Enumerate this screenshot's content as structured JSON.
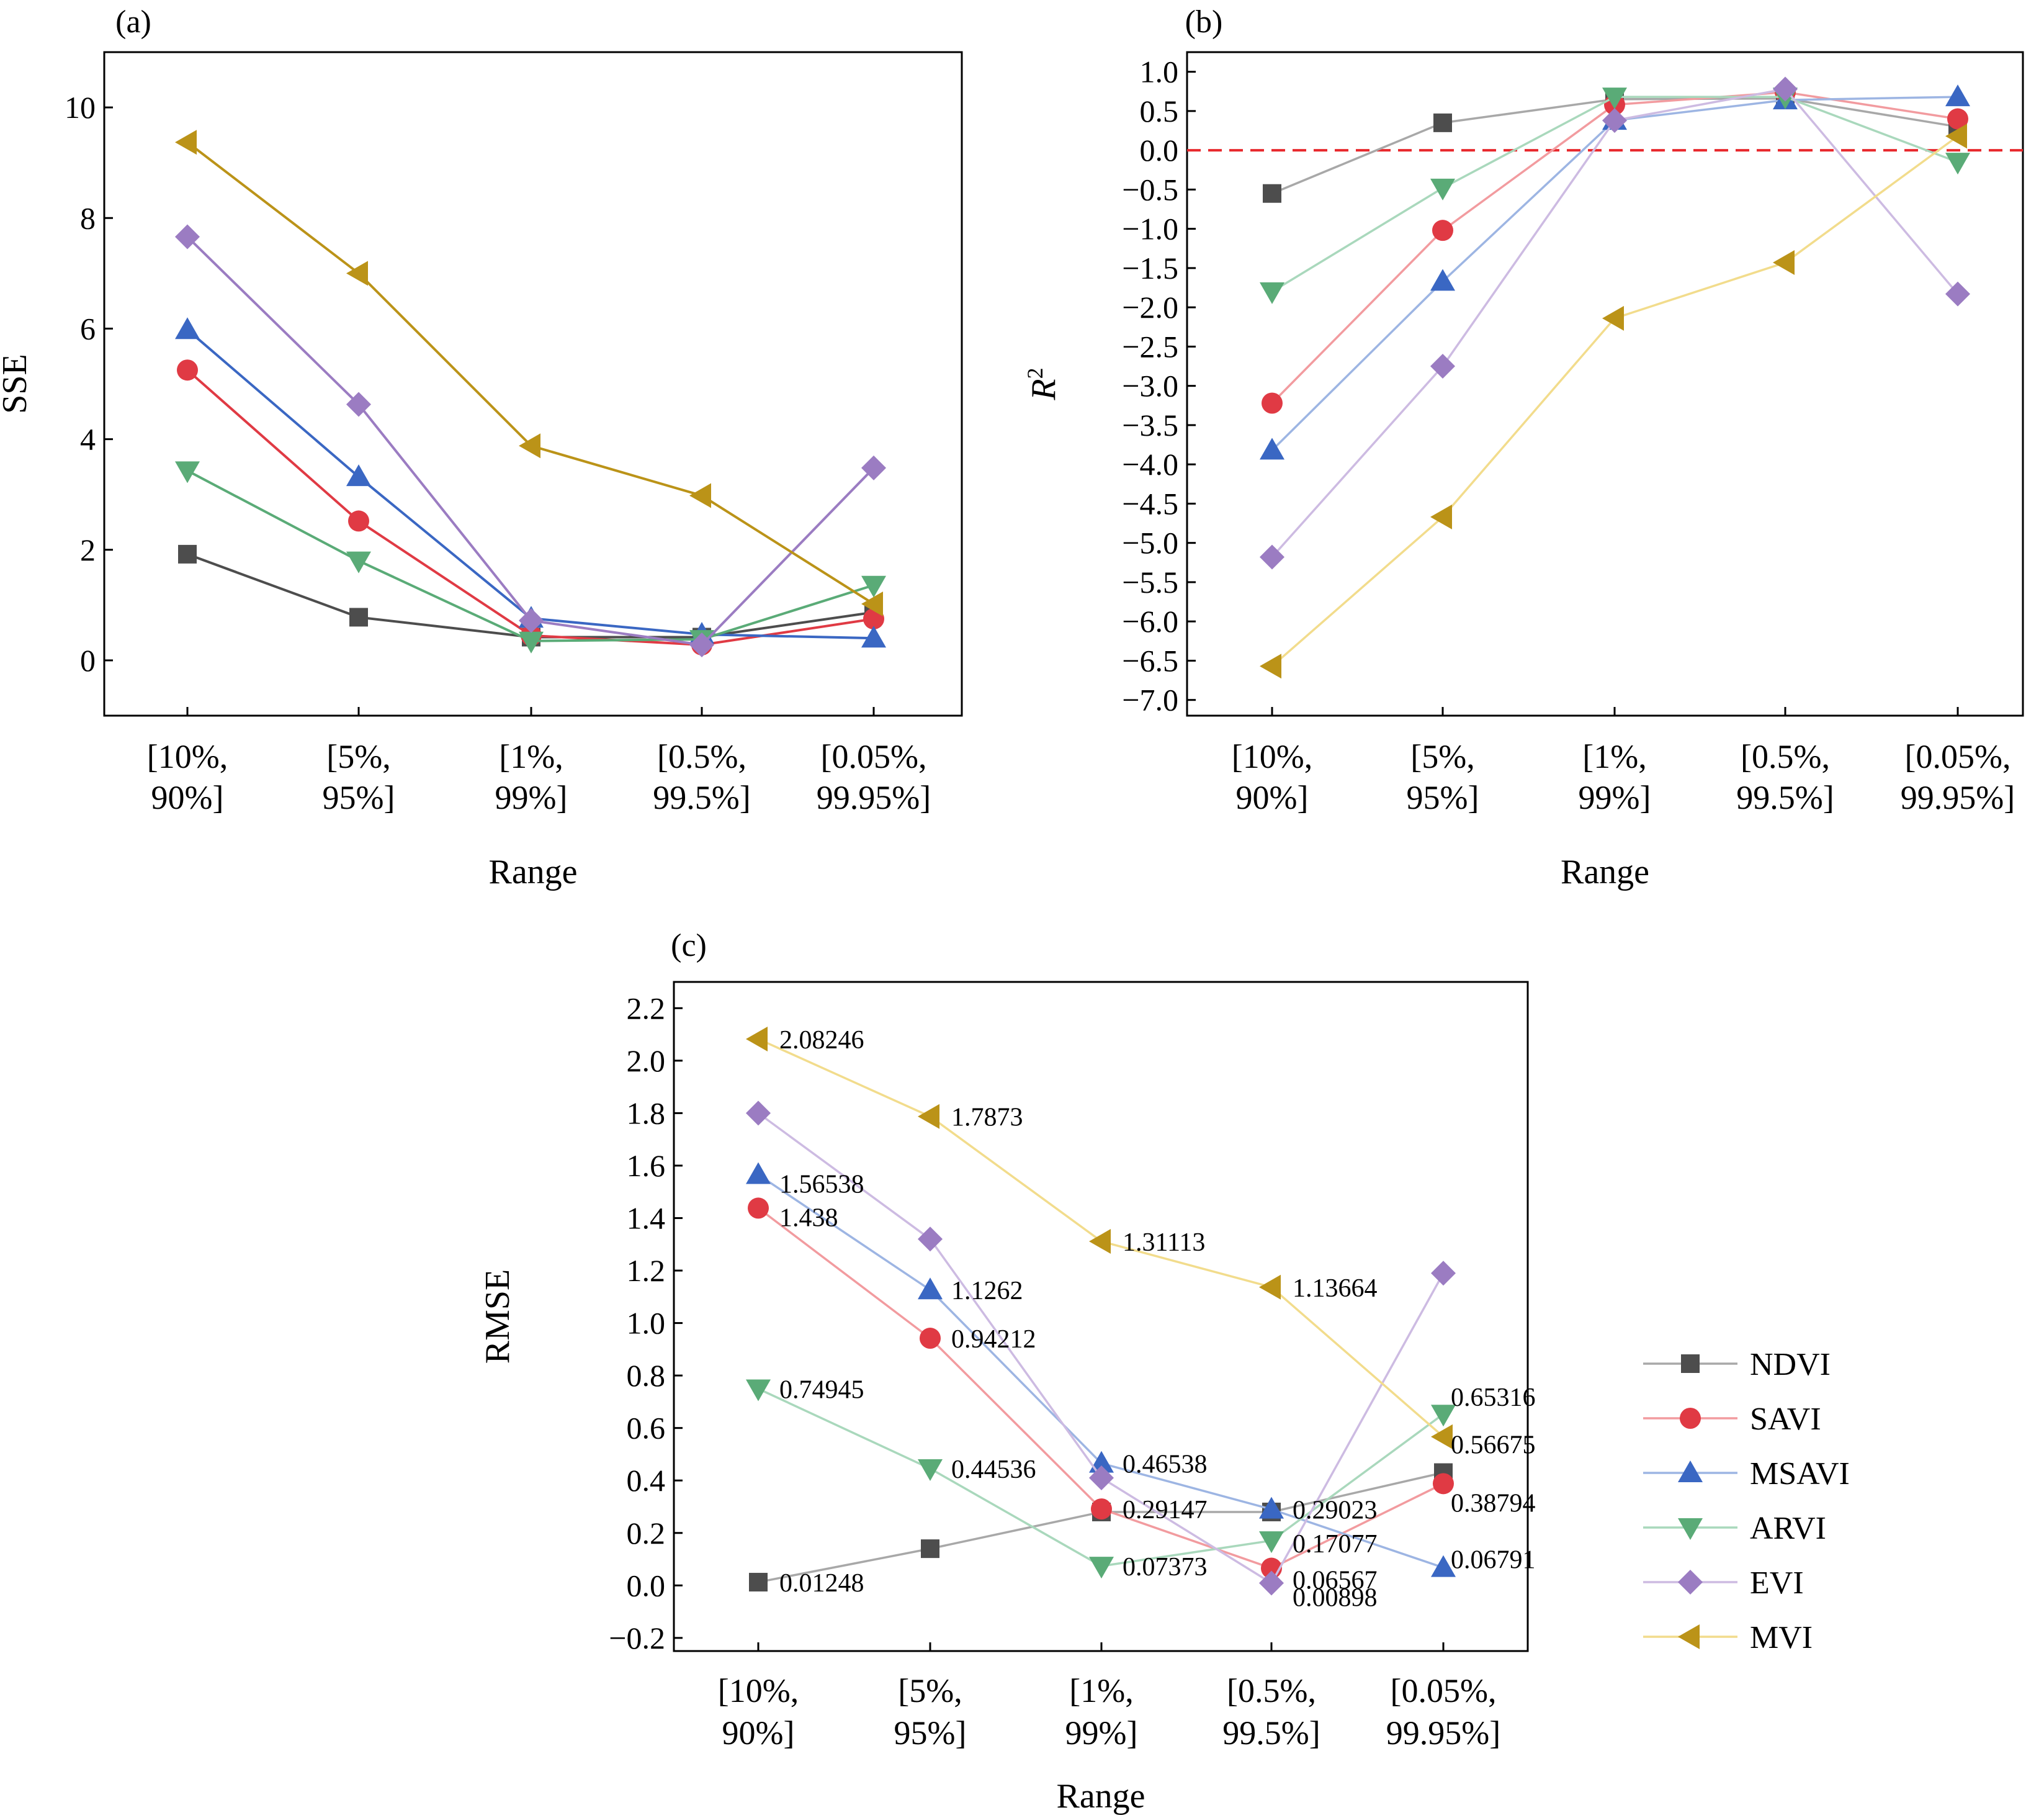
{
  "colors": {
    "NDVI": "#4d4d4d",
    "SAVI": "#e03a44",
    "MSAVI": "#3a67c3",
    "ARVI": "#5aab77",
    "EVI": "#9b7cc2",
    "MVI": "#bb9318"
  },
  "chart_data": [
    {
      "panel_label": "(a)",
      "type": "line",
      "xlabel": "Range",
      "ylabel": "SSE",
      "categories": [
        [
          "[10%,",
          "90%]"
        ],
        [
          "[5%,",
          "95%]"
        ],
        [
          "[1%,",
          "99%]"
        ],
        [
          "[0.5%,",
          "99.5%]"
        ],
        [
          "[0.05%,",
          "99.95%]"
        ]
      ],
      "ylim": [
        -1,
        11
      ],
      "yticks": [
        "0",
        "2",
        "4",
        "6",
        "8",
        "10"
      ],
      "ytick_values": [
        0,
        2,
        4,
        6,
        8,
        10
      ],
      "grid": false,
      "series": [
        {
          "name": "NDVI",
          "marker": "square",
          "color": "#4d4d4d",
          "line_color": "#4d4d4d",
          "values": [
            1.92,
            0.78,
            0.42,
            0.42,
            0.87
          ]
        },
        {
          "name": "SAVI",
          "marker": "circle",
          "color": "#e03a44",
          "line_color": "#e03a44",
          "values": [
            5.25,
            2.52,
            0.45,
            0.28,
            0.75
          ]
        },
        {
          "name": "MSAVI",
          "marker": "triangle-up",
          "color": "#3a67c3",
          "line_color": "#3a67c3",
          "values": [
            5.98,
            3.32,
            0.76,
            0.47,
            0.4
          ]
        },
        {
          "name": "ARVI",
          "marker": "triangle-down",
          "color": "#5aab77",
          "line_color": "#5aab77",
          "values": [
            3.43,
            1.8,
            0.35,
            0.38,
            1.36
          ]
        },
        {
          "name": "EVI",
          "marker": "diamond",
          "color": "#9b7cc2",
          "line_color": "#9b7cc2",
          "values": [
            7.66,
            4.63,
            0.72,
            0.28,
            3.48
          ]
        },
        {
          "name": "MVI",
          "marker": "triangle-left",
          "color": "#bb9318",
          "line_color": "#bb9318",
          "values": [
            9.37,
            7.0,
            3.88,
            2.98,
            1.02
          ]
        }
      ]
    },
    {
      "panel_label": "(b)",
      "type": "line",
      "xlabel": "Range",
      "ylabel": "R",
      "ylabel_sup": "2",
      "categories": [
        [
          "[10%,",
          "90%]"
        ],
        [
          "[5%,",
          "95%]"
        ],
        [
          "[1%,",
          "99%]"
        ],
        [
          "[0.5%,",
          "99.5%]"
        ],
        [
          "[0.05%,",
          "99.95%]"
        ]
      ],
      "ylim": [
        -7.2,
        1.25
      ],
      "yticks": [
        "1.0",
        "0.5",
        "0.0",
        "−0.5",
        "−1.0",
        "−1.5",
        "−2.0",
        "−2.5",
        "−3.0",
        "−3.5",
        "−4.0",
        "−4.5",
        "−5.0",
        "−5.5",
        "−6.0",
        "−6.5",
        "−7.0"
      ],
      "ytick_values": [
        1.0,
        0.5,
        0.0,
        -0.5,
        -1.0,
        -1.5,
        -2.0,
        -2.5,
        -3.0,
        -3.5,
        -4.0,
        -4.5,
        -5.0,
        -5.5,
        -6.0,
        -6.5,
        -7.0
      ],
      "reference_line": {
        "y": 0,
        "color": "#e8282d",
        "style": "dashed"
      },
      "grid": false,
      "series": [
        {
          "name": "NDVI",
          "marker": "square",
          "color": "#4d4d4d",
          "line_color": "#a8a8a8",
          "values": [
            -0.55,
            0.35,
            0.65,
            0.66,
            0.3
          ]
        },
        {
          "name": "SAVI",
          "marker": "circle",
          "color": "#e03a44",
          "line_color": "#f29b9f",
          "values": [
            -3.22,
            -1.02,
            0.58,
            0.74,
            0.4
          ]
        },
        {
          "name": "MSAVI",
          "marker": "triangle-up",
          "color": "#3a67c3",
          "line_color": "#9db5e3",
          "values": [
            -3.82,
            -1.67,
            0.38,
            0.64,
            0.68
          ]
        },
        {
          "name": "ARVI",
          "marker": "triangle-down",
          "color": "#5aab77",
          "line_color": "#a9d8bc",
          "values": [
            -1.8,
            -0.48,
            0.68,
            0.68,
            -0.15
          ]
        },
        {
          "name": "EVI",
          "marker": "diamond",
          "color": "#9b7cc2",
          "line_color": "#cdbbe2",
          "values": [
            -5.18,
            -2.75,
            0.38,
            0.78,
            -1.83
          ]
        },
        {
          "name": "MVI",
          "marker": "triangle-left",
          "color": "#bb9318",
          "line_color": "#f2dc8c",
          "values": [
            -6.57,
            -4.67,
            -2.14,
            -1.43,
            0.18
          ]
        }
      ]
    },
    {
      "panel_label": "(c)",
      "type": "line",
      "xlabel": "Range",
      "ylabel": "RMSE",
      "categories": [
        [
          "[10%,",
          "90%]"
        ],
        [
          "[5%,",
          "95%]"
        ],
        [
          "[1%,",
          "99%]"
        ],
        [
          "[0.5%,",
          "99.5%]"
        ],
        [
          "[0.05%,",
          "99.95%]"
        ]
      ],
      "ylim": [
        -0.25,
        2.3
      ],
      "yticks": [
        "2.2",
        "2.0",
        "1.8",
        "1.6",
        "1.4",
        "1.2",
        "1.0",
        "0.8",
        "0.6",
        "0.4",
        "0.2",
        "0.0",
        "−0.2"
      ],
      "ytick_values": [
        2.2,
        2.0,
        1.8,
        1.6,
        1.4,
        1.2,
        1.0,
        0.8,
        0.6,
        0.4,
        0.2,
        0.0,
        -0.2
      ],
      "grid": false,
      "legend_position": "right",
      "series": [
        {
          "name": "NDVI",
          "marker": "square",
          "color": "#4d4d4d",
          "line_color": "#a8a8a8",
          "values": [
            0.01248,
            0.14,
            0.28,
            0.28,
            0.43
          ]
        },
        {
          "name": "SAVI",
          "marker": "circle",
          "color": "#e03a44",
          "line_color": "#f29b9f",
          "values": [
            1.438,
            0.94212,
            0.29147,
            0.06567,
            0.38794
          ]
        },
        {
          "name": "MSAVI",
          "marker": "triangle-up",
          "color": "#3a67c3",
          "line_color": "#9db5e3",
          "values": [
            1.56538,
            1.1262,
            0.46538,
            0.29023,
            0.06791
          ]
        },
        {
          "name": "ARVI",
          "marker": "triangle-down",
          "color": "#5aab77",
          "line_color": "#a9d8bc",
          "values": [
            0.74945,
            0.44536,
            0.07373,
            0.17077,
            0.65316
          ]
        },
        {
          "name": "EVI",
          "marker": "diamond",
          "color": "#9b7cc2",
          "line_color": "#cdbbe2",
          "values": [
            1.8,
            1.32,
            0.41,
            0.00898,
            1.19
          ]
        },
        {
          "name": "MVI",
          "marker": "triangle-left",
          "color": "#bb9318",
          "line_color": "#f2dc8c",
          "values": [
            2.08246,
            1.7873,
            1.31113,
            1.13664,
            0.56675
          ]
        }
      ],
      "data_labels": [
        {
          "series": "MVI",
          "index": 0,
          "text": "2.08246"
        },
        {
          "series": "MVI",
          "index": 1,
          "text": "1.7873"
        },
        {
          "series": "MSAVI",
          "index": 0,
          "text": "1.56538"
        },
        {
          "series": "SAVI",
          "index": 0,
          "text": "1.438"
        },
        {
          "series": "MVI",
          "index": 2,
          "text": "1.31113"
        },
        {
          "series": "MVI",
          "index": 3,
          "text": "1.13664"
        },
        {
          "series": "MSAVI",
          "index": 1,
          "text": "1.1262"
        },
        {
          "series": "SAVI",
          "index": 1,
          "text": "0.94212"
        },
        {
          "series": "ARVI",
          "index": 0,
          "text": "0.74945"
        },
        {
          "series": "ARVI",
          "index": 4,
          "text": "0.65316"
        },
        {
          "series": "MVI",
          "index": 4,
          "text": "0.56675"
        },
        {
          "series": "MSAVI",
          "index": 2,
          "text": "0.46538"
        },
        {
          "series": "ARVI",
          "index": 1,
          "text": "0.44536"
        },
        {
          "series": "SAVI",
          "index": 4,
          "text": "0.38794"
        },
        {
          "series": "SAVI",
          "index": 2,
          "text": "0.29147"
        },
        {
          "series": "MSAVI",
          "index": 3,
          "text": "0.29023"
        },
        {
          "series": "ARVI",
          "index": 3,
          "text": "0.17077"
        },
        {
          "series": "ARVI",
          "index": 2,
          "text": "0.07373"
        },
        {
          "series": "MSAVI",
          "index": 4,
          "text": "0.06791"
        },
        {
          "series": "SAVI",
          "index": 3,
          "text": "0.06567"
        },
        {
          "series": "NDVI",
          "index": 0,
          "text": "0.01248"
        },
        {
          "series": "EVI",
          "index": 3,
          "text": "0.00898"
        }
      ]
    }
  ],
  "legend": [
    "NDVI",
    "SAVI",
    "MSAVI",
    "ARVI",
    "EVI",
    "MVI"
  ]
}
